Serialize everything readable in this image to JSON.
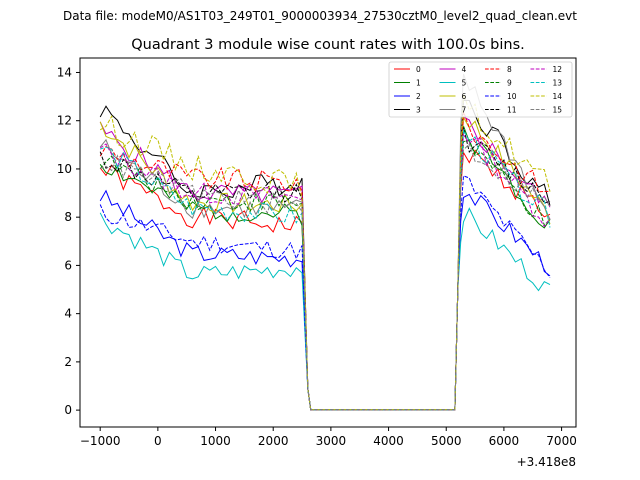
{
  "chart_data": {
    "type": "line",
    "suptitle": "Data file: modeM0/AS1T03_249T01_9000003934_27530cztM0_level2_quad_clean.evt",
    "title": "Quadrant 3 module wise count rates with 100.0s bins.",
    "xlabel": "",
    "ylabel": "",
    "x_offset_label": "+3.418e8",
    "xlim": [
      -1350,
      7250
    ],
    "ylim": [
      -0.7,
      14.6
    ],
    "xticks": [
      -1000,
      0,
      1000,
      2000,
      3000,
      4000,
      5000,
      6000,
      7000
    ],
    "yticks": [
      0,
      2,
      4,
      6,
      8,
      10,
      12,
      14
    ],
    "xtick_labels": [
      "−1000",
      "0",
      "1000",
      "2000",
      "3000",
      "4000",
      "5000",
      "6000",
      "7000"
    ],
    "ytick_labels": [
      "0",
      "2",
      "4",
      "6",
      "8",
      "10",
      "12",
      "14"
    ],
    "segments": {
      "seg1_x": [
        -1000,
        2500
      ],
      "drop_x": [
        2500,
        2550,
        2600,
        2650
      ],
      "flat_x": [
        2650,
        5150
      ],
      "rise_x": [
        5150,
        5200,
        5250,
        5300
      ],
      "seg2_x": [
        5300,
        6850
      ]
    },
    "series": [
      {
        "name": "0",
        "color": "#ff0000",
        "style": "solid",
        "start": 10.0,
        "mid": 8.0,
        "end": 7.6,
        "late_start": 10.8,
        "late_end": 8.0,
        "amp": 0.45,
        "seed": 1
      },
      {
        "name": "1",
        "color": "#008000",
        "style": "solid",
        "start": 10.3,
        "mid": 8.3,
        "end": 8.1,
        "late_start": 11.6,
        "late_end": 7.5,
        "amp": 0.45,
        "seed": 2
      },
      {
        "name": "2",
        "color": "#0000ff",
        "style": "solid",
        "start": 8.9,
        "mid": 6.5,
        "end": 6.3,
        "late_start": 9.2,
        "late_end": 5.8,
        "amp": 0.4,
        "seed": 3
      },
      {
        "name": "3",
        "color": "#000000",
        "style": "solid",
        "start": 12.6,
        "mid": 9.0,
        "end": 9.5,
        "late_start": 13.0,
        "late_end": 8.5,
        "amp": 0.5,
        "seed": 4
      },
      {
        "name": "4",
        "color": "#bf00bf",
        "style": "solid",
        "start": 11.6,
        "mid": 9.0,
        "end": 8.9,
        "late_start": 12.0,
        "late_end": 8.2,
        "amp": 0.45,
        "seed": 5
      },
      {
        "name": "5",
        "color": "#00bfbf",
        "style": "solid",
        "start": 8.0,
        "mid": 5.6,
        "end": 5.9,
        "late_start": 8.2,
        "late_end": 4.8,
        "amp": 0.4,
        "seed": 6
      },
      {
        "name": "6",
        "color": "#bfbf00",
        "style": "solid",
        "start": 11.9,
        "mid": 8.6,
        "end": 8.5,
        "late_start": 12.3,
        "late_end": 7.9,
        "amp": 0.45,
        "seed": 7
      },
      {
        "name": "7",
        "color": "#808080",
        "style": "solid",
        "start": 11.0,
        "mid": 8.4,
        "end": 8.3,
        "late_start": 13.8,
        "late_end": 7.8,
        "amp": 0.45,
        "seed": 8
      },
      {
        "name": "8",
        "color": "#ff0000",
        "style": "dashed",
        "start": 10.8,
        "mid": 9.6,
        "end": 9.4,
        "late_start": 11.9,
        "late_end": 8.8,
        "amp": 0.5,
        "seed": 9
      },
      {
        "name": "9",
        "color": "#008000",
        "style": "dashed",
        "start": 10.4,
        "mid": 8.7,
        "end": 8.6,
        "late_start": 11.3,
        "late_end": 7.4,
        "amp": 0.45,
        "seed": 10
      },
      {
        "name": "10",
        "color": "#0000ff",
        "style": "dashed",
        "start": 8.2,
        "mid": 7.0,
        "end": 6.6,
        "late_start": 9.6,
        "late_end": 5.6,
        "amp": 0.4,
        "seed": 11
      },
      {
        "name": "11",
        "color": "#000000",
        "style": "dashed",
        "start": 10.5,
        "mid": 8.9,
        "end": 9.1,
        "late_start": 11.3,
        "late_end": 8.6,
        "amp": 0.45,
        "seed": 12
      },
      {
        "name": "12",
        "color": "#bf00bf",
        "style": "dashed",
        "start": 10.8,
        "mid": 9.0,
        "end": 8.8,
        "late_start": 11.6,
        "late_end": 7.6,
        "amp": 0.45,
        "seed": 13
      },
      {
        "name": "13",
        "color": "#00bfbf",
        "style": "dashed",
        "start": 10.9,
        "mid": 8.4,
        "end": 8.0,
        "late_start": 11.5,
        "late_end": 7.9,
        "amp": 0.45,
        "seed": 14
      },
      {
        "name": "14",
        "color": "#bfbf00",
        "style": "dashed",
        "start": 11.9,
        "mid": 10.1,
        "end": 9.3,
        "late_start": 12.6,
        "late_end": 9.2,
        "amp": 0.55,
        "seed": 15
      },
      {
        "name": "15",
        "color": "#808080",
        "style": "dashed",
        "start": 10.4,
        "mid": 9.0,
        "end": 8.4,
        "late_start": 11.0,
        "late_end": 8.3,
        "amp": 0.45,
        "seed": 16
      }
    ]
  }
}
